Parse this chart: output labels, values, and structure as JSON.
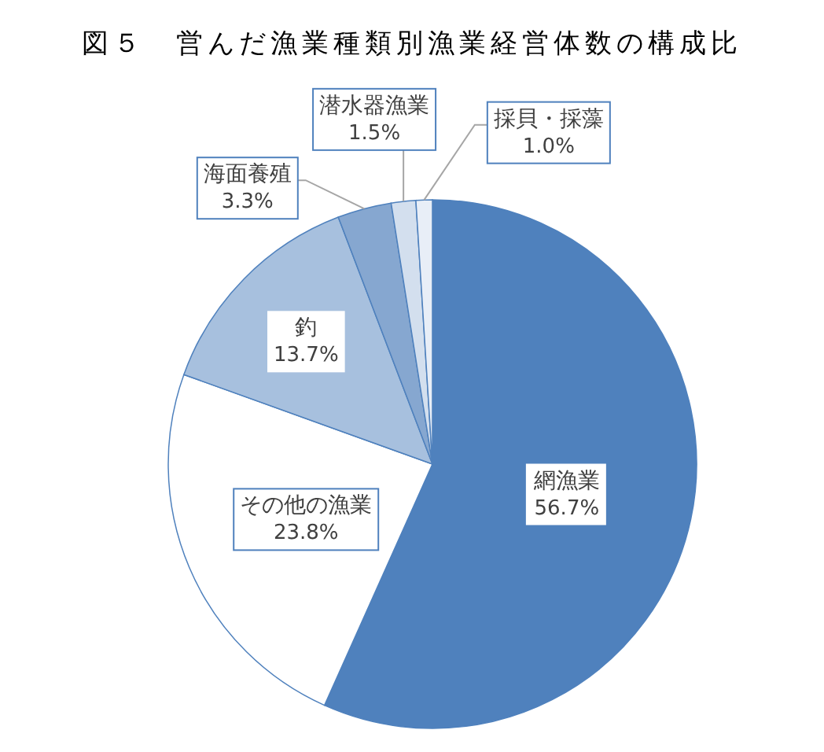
{
  "chart_data": {
    "type": "pie",
    "title": "図５　営んだ漁業種類別漁業経営体数の構成比",
    "categories": [
      "網漁業",
      "その他の漁業",
      "釣",
      "海面養殖",
      "潜水器漁業",
      "採貝・採藻"
    ],
    "values": [
      56.7,
      23.8,
      13.7,
      3.3,
      1.5,
      1.0
    ],
    "colors": [
      "#4f81bd",
      "#ffffff",
      "#a7c0de",
      "#86a7d0",
      "#d3dfee",
      "#e8eef7"
    ],
    "value_labels": [
      "56.7%",
      "23.8%",
      "13.7%",
      "3.3%",
      "1.5%",
      "1.0%"
    ]
  }
}
